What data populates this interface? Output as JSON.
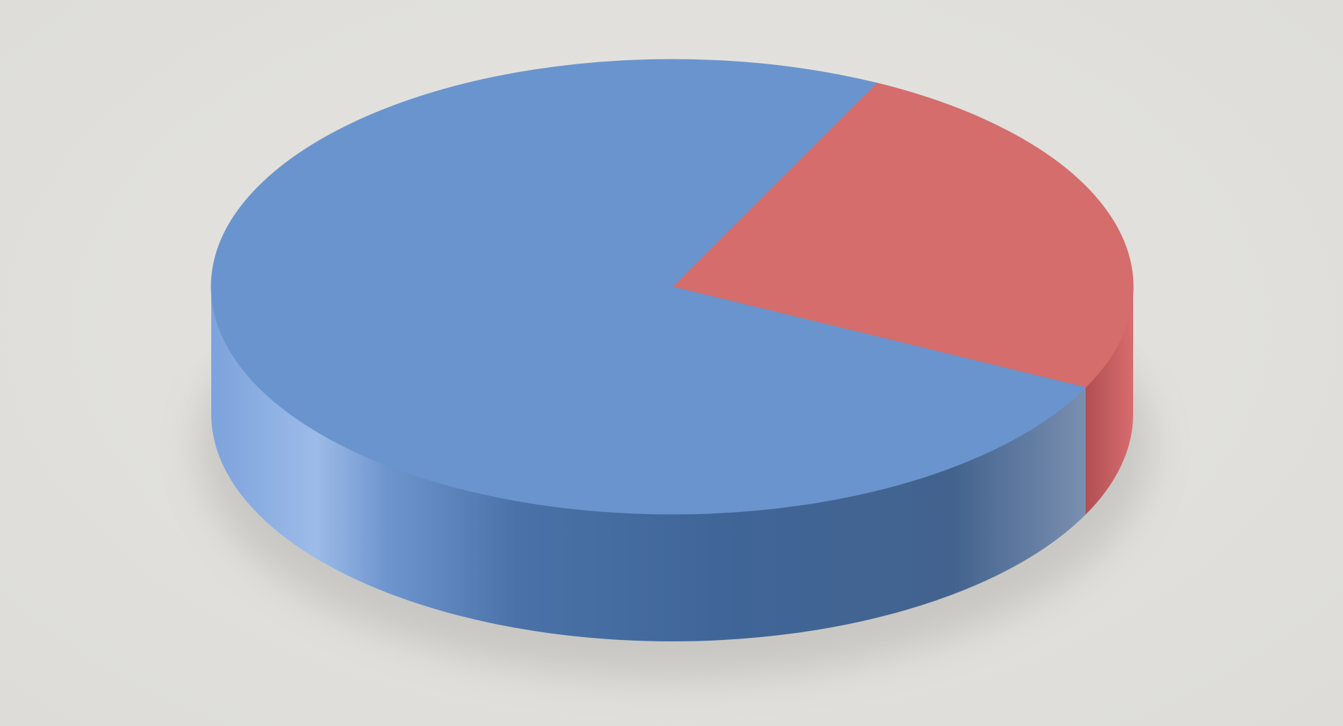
{
  "chart_data": {
    "type": "pie",
    "style": "3d",
    "title": "",
    "legend": "none",
    "start_angle_deg": 63.7,
    "direction": "clockwise",
    "slices": [
      {
        "label": "",
        "value": 25,
        "color": "#d46d6b",
        "side_color": "#b04f52"
      },
      {
        "label": "",
        "value": 75,
        "color": "#6a94cd",
        "side_color": "#436895"
      }
    ]
  }
}
